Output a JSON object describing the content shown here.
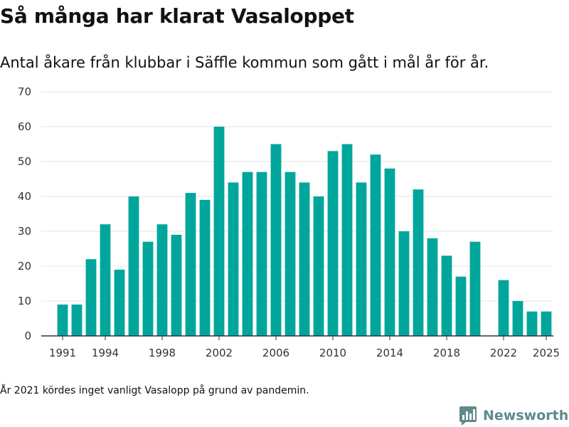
{
  "title": "Så många har klarat Vasaloppet",
  "subtitle": "Antal åkare från klubbar i Säffle kommun som gått i mål år för år.",
  "footnote": "År 2021 kördes inget vanligt Vasalopp på grund av pandemin.",
  "brand": {
    "name": "Newsworthy",
    "icon": "newsworthy-logo-icon",
    "color": "#5f8a8b"
  },
  "colors": {
    "bar": "#00a69c",
    "grid": "#e6e6e6",
    "axis": "#333333",
    "text": "#333333"
  },
  "chart_data": {
    "type": "bar",
    "title": "Så många har klarat Vasaloppet",
    "xlabel": "",
    "ylabel": "",
    "ylim": [
      0,
      70
    ],
    "yticks": [
      0,
      10,
      20,
      30,
      40,
      50,
      60,
      70
    ],
    "xtick_labels": [
      "1991",
      "1994",
      "1998",
      "2002",
      "2006",
      "2010",
      "2014",
      "2018",
      "2022",
      "2025"
    ],
    "grid": true,
    "categories": [
      1991,
      1992,
      1993,
      1994,
      1995,
      1996,
      1997,
      1998,
      1999,
      2000,
      2001,
      2002,
      2003,
      2004,
      2005,
      2006,
      2007,
      2008,
      2009,
      2010,
      2011,
      2012,
      2013,
      2014,
      2015,
      2016,
      2017,
      2018,
      2019,
      2020,
      2021,
      2022,
      2023,
      2024,
      2025
    ],
    "values": [
      9,
      9,
      22,
      32,
      19,
      40,
      27,
      32,
      29,
      41,
      39,
      60,
      44,
      47,
      47,
      55,
      47,
      44,
      40,
      53,
      55,
      44,
      52,
      48,
      30,
      42,
      28,
      23,
      17,
      27,
      null,
      16,
      10,
      7,
      7
    ]
  }
}
